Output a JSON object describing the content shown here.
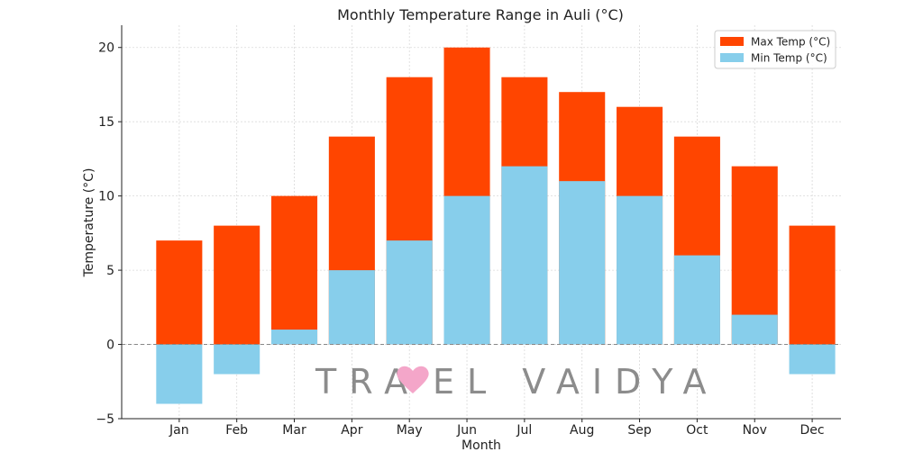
{
  "chart_data": {
    "type": "bar",
    "title": "Monthly Temperature Range in Auli (°C)",
    "xlabel": "Month",
    "ylabel": "Temperature (°C)",
    "categories": [
      "Jan",
      "Feb",
      "Mar",
      "Apr",
      "May",
      "Jun",
      "Jul",
      "Aug",
      "Sep",
      "Oct",
      "Nov",
      "Dec"
    ],
    "series": [
      {
        "name": "Max Temp (°C)",
        "color": "#ff4500",
        "values": [
          7,
          8,
          10,
          14,
          18,
          20,
          18,
          17,
          16,
          14,
          12,
          8
        ]
      },
      {
        "name": "Min Temp (°C)",
        "color": "#87ceeb",
        "values": [
          -4,
          -2,
          1,
          5,
          7,
          10,
          12,
          11,
          10,
          6,
          2,
          -2
        ]
      }
    ],
    "ylim": [
      -5,
      21.5
    ],
    "yticks": [
      -5,
      0,
      5,
      10,
      15,
      20
    ],
    "grid": true,
    "legend": "top-right",
    "zero_line": "dashed"
  },
  "watermark": {
    "before": "TRA",
    "after": "EL  VAIDYA",
    "heart_color": "#f4a6c9"
  }
}
